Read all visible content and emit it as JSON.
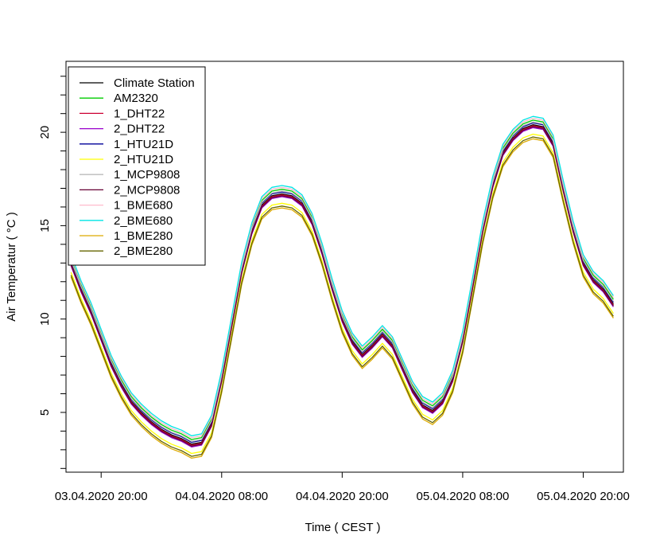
{
  "chart_data": {
    "type": "line",
    "title": "",
    "xlabel": "Time ( CEST )",
    "ylabel": "Air Temperatur ( °C )",
    "x_ticks": [
      "03.04.2020 20:00",
      "04.04.2020 08:00",
      "04.04.2020 20:00",
      "05.04.2020 08:00",
      "05.04.2020 20:00"
    ],
    "y_ticks": [
      "5",
      "10",
      "15",
      "20"
    ],
    "xlim": [
      "03.04.2020 16:30",
      "06.04.2020 00:00"
    ],
    "ylim": [
      1.8,
      23.8
    ],
    "grid": false,
    "legend_position": "top-left",
    "base_series": {
      "x": [
        "03.04.2020 17:00",
        "03.04.2020 18:00",
        "03.04.2020 19:00",
        "03.04.2020 20:00",
        "03.04.2020 21:00",
        "03.04.2020 22:00",
        "03.04.2020 23:00",
        "04.04.2020 00:00",
        "04.04.2020 01:00",
        "04.04.2020 02:00",
        "04.04.2020 03:00",
        "04.04.2020 04:00",
        "04.04.2020 05:00",
        "04.04.2020 06:00",
        "04.04.2020 07:00",
        "04.04.2020 08:00",
        "04.04.2020 09:00",
        "04.04.2020 10:00",
        "04.04.2020 11:00",
        "04.04.2020 12:00",
        "04.04.2020 13:00",
        "04.04.2020 14:00",
        "04.04.2020 15:00",
        "04.04.2020 16:00",
        "04.04.2020 17:00",
        "04.04.2020 18:00",
        "04.04.2020 19:00",
        "04.04.2020 20:00",
        "04.04.2020 21:00",
        "04.04.2020 22:00",
        "04.04.2020 23:00",
        "05.04.2020 00:00",
        "05.04.2020 01:00",
        "05.04.2020 02:00",
        "05.04.2020 03:00",
        "05.04.2020 04:00",
        "05.04.2020 05:00",
        "05.04.2020 06:00",
        "05.04.2020 07:00",
        "05.04.2020 08:00",
        "05.04.2020 09:00",
        "05.04.2020 10:00",
        "05.04.2020 11:00",
        "05.04.2020 12:00",
        "05.04.2020 13:00",
        "05.04.2020 14:00",
        "05.04.2020 15:00",
        "05.04.2020 16:00",
        "05.04.2020 17:00",
        "05.04.2020 18:00",
        "05.04.2020 19:00",
        "05.04.2020 20:00",
        "05.04.2020 21:00",
        "05.04.2020 22:00",
        "05.04.2020 23:00"
      ],
      "y": [
        13.0,
        11.6,
        10.4,
        9.0,
        7.6,
        6.5,
        5.6,
        5.0,
        4.5,
        4.1,
        3.8,
        3.6,
        3.3,
        3.4,
        4.4,
        6.8,
        9.7,
        12.6,
        14.7,
        16.1,
        16.6,
        16.7,
        16.6,
        16.2,
        15.2,
        13.6,
        11.7,
        10.0,
        8.8,
        8.1,
        8.6,
        9.2,
        8.6,
        7.4,
        6.2,
        5.4,
        5.1,
        5.6,
        6.8,
        8.9,
        11.8,
        14.8,
        17.2,
        18.9,
        19.7,
        20.2,
        20.4,
        20.3,
        19.4,
        17.0,
        14.8,
        13.0,
        12.1,
        11.6,
        10.8
      ]
    },
    "series": [
      {
        "name": "Climate Station",
        "color": "#000000",
        "offset": 0.0
      },
      {
        "name": "AM2320",
        "color": "#00cc00",
        "offset": 0.25
      },
      {
        "name": "1_DHT22",
        "color": "#cc0033",
        "offset": -0.05
      },
      {
        "name": "2_DHT22",
        "color": "#9900cc",
        "offset": -0.15
      },
      {
        "name": "1_HTU21D",
        "color": "#000099",
        "offset": 0.1
      },
      {
        "name": "2_HTU21D",
        "color": "#ffff00",
        "offset": -0.5
      },
      {
        "name": "1_MCP9808",
        "color": "#bbbbbb",
        "offset": 0.15
      },
      {
        "name": "2_MCP9808",
        "color": "#660033",
        "offset": -0.1
      },
      {
        "name": "1_BME680",
        "color": "#ffbbcc",
        "offset": 0.35
      },
      {
        "name": "2_BME680",
        "color": "#00e5e5",
        "offset": 0.45
      },
      {
        "name": "1_BME280",
        "color": "#ddaa00",
        "offset": -0.75
      },
      {
        "name": "2_BME280",
        "color": "#666600",
        "offset": -0.65
      }
    ]
  }
}
